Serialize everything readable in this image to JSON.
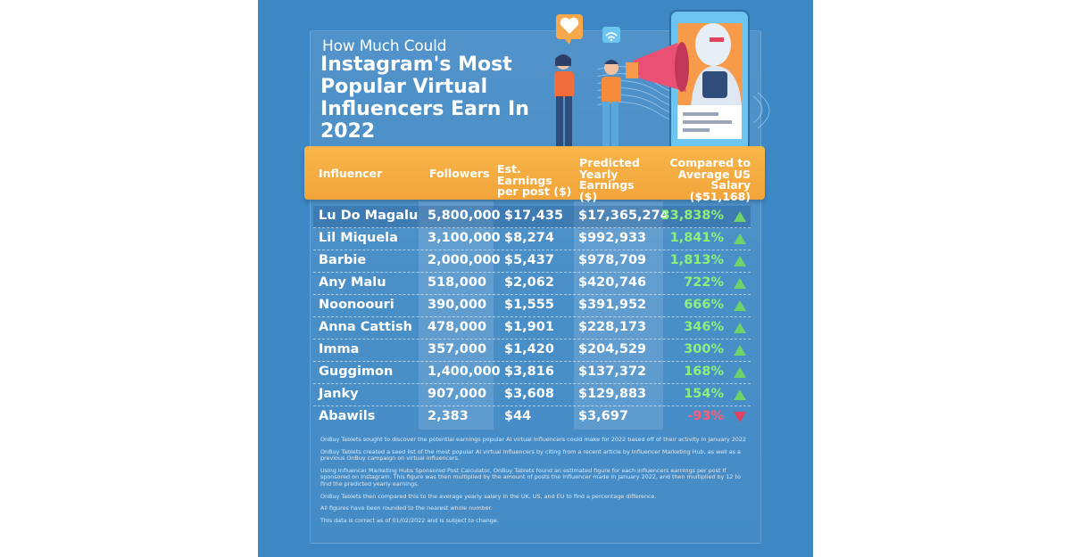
{
  "title": {
    "line1": "How Much Could",
    "line2": "Instagram's Most",
    "line3": "Popular Virtual",
    "line4": "Influencers Earn In",
    "line5": "2022"
  },
  "columns": {
    "influencer": "Influencer",
    "followers": "Followers",
    "earnings_post": "Est. Earnings per post ($)",
    "predicted": "Predicted Yearly Earnings ($)",
    "compared": "Compared to Average US Salary ($51,168)"
  },
  "rows": [
    {
      "name": "Lu Do Magalu",
      "followers": "5,800,000",
      "post": "$17,435",
      "yearly": "$17,365,274",
      "compared": "33,838%",
      "trend": "up"
    },
    {
      "name": "Lil Miquela",
      "followers": "3,100,000",
      "post": "$8,274",
      "yearly": "$992,933",
      "compared": "1,841%",
      "trend": "up"
    },
    {
      "name": "Barbie",
      "followers": "2,000,000",
      "post": "$5,437",
      "yearly": "$978,709",
      "compared": "1,813%",
      "trend": "up"
    },
    {
      "name": "Any Malu",
      "followers": "518,000",
      "post": "$2,062",
      "yearly": "$420,746",
      "compared": "722%",
      "trend": "up"
    },
    {
      "name": "Noonoouri",
      "followers": "390,000",
      "post": "$1,555",
      "yearly": "$391,952",
      "compared": "666%",
      "trend": "up"
    },
    {
      "name": "Anna Cattish",
      "followers": "478,000",
      "post": "$1,901",
      "yearly": "$228,173",
      "compared": "346%",
      "trend": "up"
    },
    {
      "name": "Imma",
      "followers": "357,000",
      "post": "$1,420",
      "yearly": "$204,529",
      "compared": "300%",
      "trend": "up"
    },
    {
      "name": "Guggimon",
      "followers": "1,400,000",
      "post": "$3,816",
      "yearly": "$137,372",
      "compared": "168%",
      "trend": "up"
    },
    {
      "name": "Janky",
      "followers": "907,000",
      "post": "$3,608",
      "yearly": "$129,883",
      "compared": "154%",
      "trend": "up"
    },
    {
      "name": "Abawils",
      "followers": "2,383",
      "post": "$44",
      "yearly": "$3,697",
      "compared": "-93%",
      "trend": "down"
    }
  ],
  "notes": [
    "OnBuy Tablets sought to discover the potential earnings popular AI virtual influencers could make for 2022 based off of their activity in January 2022",
    "OnBuy Tablets created a seed list of the most popular AI virtual influencers by citing from a recent article by Influencer Marketing Hub, as well as a previous OnBuy campaign on virtual influencers.",
    "Using Influencer Marketing Hubs Sponsored Post Calculator, OnBuy Tablets found an estimated figure for each influencers earnings per post if sponsored on Instagram. This figure was then multiplied by the amount of posts the influencer made in January 2022, and then multiplied by 12 to find the predicted yearly earnings.",
    "OnBuy Tablets then compared this to the average yearly salary in the UK, US, and EU to find a percentage difference.",
    "All figures have been rounded to the nearest whole number.",
    "This data is correct as of 01/02/2022 and is subject to change."
  ],
  "icons": {
    "heart": "heart-icon",
    "wifi": "wifi-icon",
    "megaphone": "megaphone-icon",
    "robot": "robot-icon",
    "trend_up": "triangle-up-icon",
    "trend_down": "triangle-down-icon"
  },
  "colors": {
    "background": "#3d87c4",
    "header": "#f2a43a",
    "positive": "#6fd36b",
    "negative": "#e0445c",
    "positive_text": "#8ef07a",
    "negative_text": "#ff5c78"
  }
}
